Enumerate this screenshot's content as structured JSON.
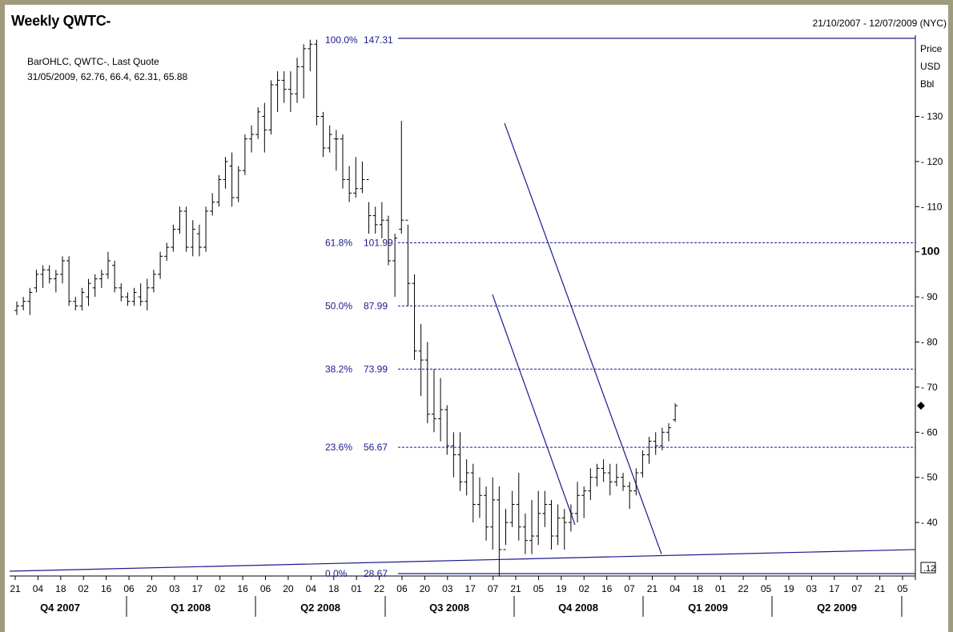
{
  "header": {
    "title": "Weekly QWTC-",
    "date_range": "21/10/2007 - 12/07/2009 (NYC)",
    "quote_name": "BarOHLC, QWTC-, Last Quote",
    "quote_values": "31/05/2009, 62.76, 66.4, 62.31, 65.88"
  },
  "y_axis": {
    "unit_lines": [
      "Price",
      "USD",
      "Bbl"
    ],
    "ticks": [
      130,
      120,
      110,
      100,
      90,
      80,
      70,
      60,
      50,
      40
    ],
    "bold_tick": 100,
    "last_marker_value": 65.88,
    "edge_box_label": ".12"
  },
  "colors": {
    "fib": "#1a1a8c",
    "trend": "#1a1a8c",
    "bars": "#000000",
    "frame": "#a09b7e"
  },
  "fib_levels": [
    {
      "pct": "100.0%",
      "value": 147.31
    },
    {
      "pct": "61.8%",
      "value": 101.99
    },
    {
      "pct": "50.0%",
      "value": 87.99
    },
    {
      "pct": "38.2%",
      "value": 73.99
    },
    {
      "pct": "23.6%",
      "value": 56.67
    },
    {
      "pct": "0.0%",
      "value": 28.67
    }
  ],
  "chart_data": {
    "type": "bar",
    "x_tick_labels": [
      "21",
      "04",
      "18",
      "02",
      "16",
      "06",
      "20",
      "03",
      "17",
      "02",
      "16",
      "06",
      "20",
      "04",
      "18",
      "01",
      "22",
      "06",
      "20",
      "03",
      "17",
      "07",
      "21",
      "05",
      "19",
      "02",
      "16",
      "07",
      "21",
      "04",
      "18",
      "01",
      "22",
      "05",
      "19",
      "03",
      "17",
      "07",
      "21",
      "05"
    ],
    "quarters": [
      "Q4 2007",
      "Q1 2008",
      "Q2 2008",
      "Q3 2008",
      "Q4 2008",
      "Q1 2009",
      "Q2 2009"
    ],
    "ylim": [
      27,
      148
    ],
    "series": [
      {
        "values": [
          [
            87,
            89,
            86,
            88
          ],
          [
            88,
            90,
            87,
            89
          ],
          [
            89,
            92,
            86,
            91
          ],
          [
            92,
            96,
            91,
            95
          ],
          [
            95,
            97,
            92,
            96
          ],
          [
            96,
            97,
            93,
            94
          ],
          [
            94,
            96,
            91,
            95
          ],
          [
            95,
            99,
            93,
            98
          ],
          [
            98,
            99,
            88,
            89
          ],
          [
            89,
            90,
            87,
            88
          ],
          [
            88,
            92,
            87,
            91
          ],
          [
            90,
            94,
            88,
            93
          ],
          [
            92,
            95,
            90,
            94
          ],
          [
            94,
            96,
            92,
            95
          ],
          [
            95,
            100,
            94,
            98
          ],
          [
            97,
            98,
            91,
            92
          ],
          [
            92,
            93,
            89,
            90
          ],
          [
            90,
            91,
            88,
            89
          ],
          [
            89,
            92,
            88,
            91
          ],
          [
            90,
            93,
            88,
            89
          ],
          [
            89,
            94,
            87,
            92
          ],
          [
            92,
            96,
            91,
            95
          ],
          [
            95,
            100,
            94,
            99
          ],
          [
            99,
            102,
            98,
            101
          ],
          [
            101,
            106,
            100,
            105
          ],
          [
            105,
            110,
            104,
            109
          ],
          [
            109,
            110,
            100,
            101
          ],
          [
            101,
            107,
            99,
            105
          ],
          [
            104,
            106,
            99,
            101
          ],
          [
            101,
            110,
            100,
            109
          ],
          [
            109,
            113,
            108,
            111
          ],
          [
            111,
            117,
            110,
            116
          ],
          [
            116,
            121,
            114,
            120
          ],
          [
            119,
            122,
            110,
            112
          ],
          [
            112,
            119,
            111,
            118
          ],
          [
            118,
            126,
            117,
            125
          ],
          [
            125,
            128,
            122,
            126
          ],
          [
            126,
            132,
            125,
            131
          ],
          [
            130,
            133,
            122,
            127
          ],
          [
            127,
            138,
            126,
            137
          ],
          [
            137,
            140,
            131,
            138
          ],
          [
            138,
            140,
            133,
            136
          ],
          [
            136,
            140,
            131,
            135
          ],
          [
            135,
            143,
            133,
            141
          ],
          [
            141,
            146,
            134,
            145
          ],
          [
            145,
            147,
            140,
            146
          ],
          [
            146,
            147,
            128,
            130
          ],
          [
            130,
            131,
            121,
            123
          ],
          [
            123,
            128,
            122,
            126
          ],
          [
            125,
            127,
            118,
            125
          ],
          [
            125,
            126,
            114,
            116
          ],
          [
            116,
            119,
            111,
            113
          ],
          [
            113,
            121,
            112,
            114
          ],
          [
            114,
            120,
            113,
            116
          ],
          [
            116,
            111,
            104,
            108
          ],
          [
            108,
            110,
            104,
            106
          ],
          [
            106,
            111,
            103,
            107
          ],
          [
            107,
            108,
            97,
            98
          ],
          [
            98,
            104,
            90,
            103
          ],
          [
            105,
            129,
            104,
            107
          ],
          [
            107,
            106,
            88,
            93
          ],
          [
            93,
            95,
            76,
            78
          ],
          [
            78,
            84,
            68,
            76
          ],
          [
            76,
            80,
            62,
            64
          ],
          [
            64,
            74,
            60,
            63
          ],
          [
            63,
            72,
            58,
            65
          ],
          [
            65,
            66,
            55,
            57
          ],
          [
            57,
            60,
            50,
            55
          ],
          [
            55,
            60,
            47,
            49
          ],
          [
            49,
            54,
            46,
            51
          ],
          [
            51,
            53,
            40,
            44
          ],
          [
            44,
            50,
            41,
            46
          ],
          [
            46,
            48,
            36,
            39
          ],
          [
            39,
            50,
            34,
            45
          ],
          [
            45,
            48,
            28,
            34
          ],
          [
            34,
            43,
            35,
            40
          ],
          [
            40,
            47,
            39,
            44
          ],
          [
            44,
            51,
            36,
            39
          ],
          [
            39,
            42,
            33,
            36
          ],
          [
            36,
            45,
            33,
            37
          ],
          [
            37,
            47,
            35,
            42
          ],
          [
            42,
            47,
            39,
            44
          ],
          [
            44,
            45,
            34,
            37
          ],
          [
            37,
            44,
            35,
            41
          ],
          [
            41,
            43,
            34,
            40
          ],
          [
            40,
            44,
            38,
            42
          ],
          [
            42,
            49,
            40,
            46
          ],
          [
            46,
            48,
            41,
            47
          ],
          [
            47,
            52,
            45,
            50
          ],
          [
            50,
            53,
            48,
            52
          ],
          [
            52,
            54,
            49,
            51
          ],
          [
            51,
            53,
            46,
            49
          ],
          [
            49,
            53,
            48,
            50
          ],
          [
            50,
            51,
            47,
            48
          ],
          [
            48,
            49,
            43,
            47
          ],
          [
            47,
            52,
            46,
            51
          ],
          [
            51,
            56,
            50,
            55
          ],
          [
            55,
            59,
            53,
            58
          ],
          [
            58,
            60,
            55,
            57
          ],
          [
            57,
            61,
            56,
            60
          ],
          [
            60,
            62,
            58,
            61
          ],
          [
            62.76,
            66.4,
            62.31,
            65.88
          ]
        ]
      }
    ]
  }
}
